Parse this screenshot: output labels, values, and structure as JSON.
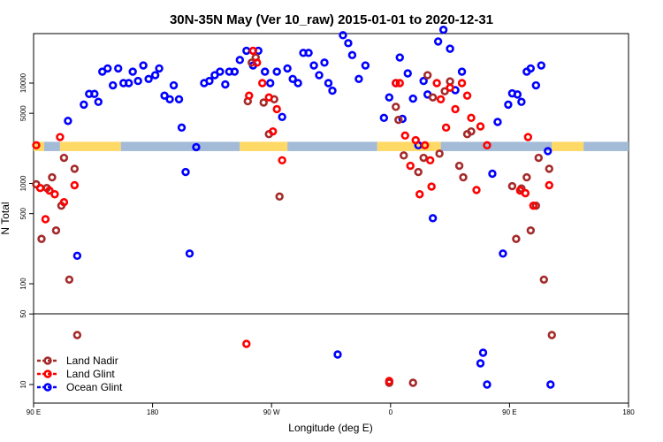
{
  "chart_data": {
    "type": "scatter",
    "title": "30N-35N May (Ver 10_raw)   2015-01-01 to 2020-12-31",
    "xlabel": "Longitude (deg E)",
    "ylabel": "N Total",
    "x_ticks": [
      {
        "value": 90,
        "label": "90 E"
      },
      {
        "value": 180,
        "label": "180"
      },
      {
        "value": 270,
        "label": "90 W"
      },
      {
        "value": 360,
        "label": "0"
      },
      {
        "value": 450,
        "label": "90 E"
      },
      {
        "value": 540,
        "label": "180"
      }
    ],
    "xlim": [
      90,
      540
    ],
    "upper_panel": {
      "yscale": "log",
      "ylim": [
        50,
        30000
      ],
      "y_ticks": [
        100,
        500,
        1000,
        5000,
        10000
      ]
    },
    "lower_panel": {
      "yscale": "linear",
      "ylim": [
        0,
        50
      ],
      "y_ticks": [
        10,
        50
      ]
    },
    "colors": {
      "land_nadir": "#a52a2a",
      "land_glint": "#ff0000",
      "ocean_glint": "#0000ff",
      "band_yellow": "#ffd966",
      "band_blue": "#a4bbd8"
    },
    "band": {
      "y_low": 2100,
      "y_high": 2600
    },
    "band_segments": [
      {
        "color": "yellow",
        "x": [
          90,
          98
        ]
      },
      {
        "color": "blue",
        "x": [
          98,
          110
        ]
      },
      {
        "color": "yellow",
        "x": [
          110,
          156
        ]
      },
      {
        "color": "blue",
        "x": [
          156,
          246
        ]
      },
      {
        "color": "yellow",
        "x": [
          246,
          282
        ]
      },
      {
        "color": "blue",
        "x": [
          282,
          350
        ]
      },
      {
        "color": "yellow",
        "x": [
          350,
          398
        ]
      },
      {
        "color": "blue",
        "x": [
          398,
          482
        ]
      },
      {
        "color": "yellow",
        "x": [
          482,
          506
        ]
      },
      {
        "color": "blue",
        "x": [
          506,
          540
        ]
      }
    ],
    "legend": {
      "position": "bottom-left",
      "entries": [
        {
          "label": "Land Nadir",
          "series": "land_nadir"
        },
        {
          "label": "Land Glint",
          "series": "land_glint"
        },
        {
          "label": "Ocean Glint",
          "series": "ocean_glint"
        }
      ]
    },
    "series": [
      {
        "name": "land_nadir",
        "points": [
          [
            92,
            980
          ],
          [
            96,
            280
          ],
          [
            100,
            900
          ],
          [
            104,
            1150
          ],
          [
            107,
            340
          ],
          [
            111,
            600
          ],
          [
            113,
            1800
          ],
          [
            117,
            110
          ],
          [
            121,
            1400
          ],
          [
            123,
            38
          ],
          [
            252,
            6600
          ],
          [
            255,
            16000
          ],
          [
            258,
            18000
          ],
          [
            264,
            6400
          ],
          [
            268,
            3100
          ],
          [
            272,
            6900
          ],
          [
            276,
            740
          ],
          [
            359,
            11
          ],
          [
            364,
            5800
          ],
          [
            366,
            4300
          ],
          [
            370,
            1900
          ],
          [
            377,
            11
          ],
          [
            381,
            1300
          ],
          [
            385,
            1800
          ],
          [
            388,
            12000
          ],
          [
            392,
            7200
          ],
          [
            397,
            1980
          ],
          [
            401,
            8300
          ],
          [
            405,
            10400
          ],
          [
            412,
            1500
          ],
          [
            415,
            1150
          ],
          [
            418,
            3100
          ],
          [
            421,
            3300
          ],
          [
            452,
            940
          ],
          [
            455,
            280
          ],
          [
            459,
            890
          ],
          [
            463,
            1150
          ],
          [
            466,
            340
          ],
          [
            470,
            600
          ],
          [
            472,
            1800
          ],
          [
            476,
            110
          ],
          [
            480,
            1400
          ],
          [
            482,
            38
          ]
        ]
      },
      {
        "name": "land_glint",
        "points": [
          [
            92,
            2400
          ],
          [
            95,
            900
          ],
          [
            99,
            440
          ],
          [
            102,
            850
          ],
          [
            106,
            780
          ],
          [
            110,
            2900
          ],
          [
            113,
            650
          ],
          [
            121,
            960
          ],
          [
            251,
            33
          ],
          [
            253,
            7500
          ],
          [
            256,
            21000
          ],
          [
            259,
            16000
          ],
          [
            263,
            10000
          ],
          [
            268,
            7200
          ],
          [
            271,
            3300
          ],
          [
            274,
            5500
          ],
          [
            278,
            1700
          ],
          [
            359,
            12
          ],
          [
            364,
            10000
          ],
          [
            367,
            10000
          ],
          [
            371,
            3000
          ],
          [
            375,
            1500
          ],
          [
            379,
            2700
          ],
          [
            382,
            780
          ],
          [
            386,
            2400
          ],
          [
            390,
            1700
          ],
          [
            391,
            930
          ],
          [
            395,
            10000
          ],
          [
            398,
            6900
          ],
          [
            402,
            3600
          ],
          [
            405,
            9000
          ],
          [
            409,
            5500
          ],
          [
            414,
            10000
          ],
          [
            418,
            7500
          ],
          [
            421,
            4500
          ],
          [
            425,
            860
          ],
          [
            428,
            3700
          ],
          [
            433,
            2400
          ],
          [
            458,
            850
          ],
          [
            462,
            800
          ],
          [
            464,
            2900
          ],
          [
            468,
            600
          ],
          [
            480,
            960
          ]
        ]
      },
      {
        "name": "ocean_glint",
        "points": [
          [
            116,
            4200
          ],
          [
            123,
            190
          ],
          [
            128,
            6100
          ],
          [
            132,
            7800
          ],
          [
            136,
            7800
          ],
          [
            139,
            6500
          ],
          [
            142,
            13000
          ],
          [
            146,
            14000
          ],
          [
            150,
            9500
          ],
          [
            154,
            14000
          ],
          [
            158,
            10000
          ],
          [
            162,
            10000
          ],
          [
            165,
            13000
          ],
          [
            169,
            10500
          ],
          [
            173,
            15000
          ],
          [
            177,
            11000
          ],
          [
            182,
            12000
          ],
          [
            185,
            14000
          ],
          [
            189,
            7500
          ],
          [
            193,
            6900
          ],
          [
            196,
            9500
          ],
          [
            200,
            6900
          ],
          [
            202,
            3600
          ],
          [
            205,
            1300
          ],
          [
            208,
            200
          ],
          [
            213,
            2300
          ],
          [
            219,
            10000
          ],
          [
            223,
            10500
          ],
          [
            227,
            12000
          ],
          [
            231,
            13000
          ],
          [
            235,
            9700
          ],
          [
            238,
            13000
          ],
          [
            242,
            13000
          ],
          [
            246,
            17000
          ],
          [
            251,
            21000
          ],
          [
            256,
            15000
          ],
          [
            260,
            21000
          ],
          [
            265,
            13000
          ],
          [
            269,
            10000
          ],
          [
            274,
            13000
          ],
          [
            278,
            4600
          ],
          [
            282,
            14000
          ],
          [
            286,
            11000
          ],
          [
            290,
            10000
          ],
          [
            294,
            20000
          ],
          [
            298,
            20000
          ],
          [
            302,
            15000
          ],
          [
            306,
            12000
          ],
          [
            310,
            16000
          ],
          [
            313,
            10000
          ],
          [
            316,
            8400
          ],
          [
            320,
            27
          ],
          [
            324,
            30000
          ],
          [
            328,
            25000
          ],
          [
            331,
            19000
          ],
          [
            336,
            11000
          ],
          [
            341,
            15000
          ],
          [
            355,
            4500
          ],
          [
            359,
            7200
          ],
          [
            364,
            10000
          ],
          [
            367,
            18000
          ],
          [
            369,
            4400
          ],
          [
            373,
            12500
          ],
          [
            377,
            7000
          ],
          [
            381,
            2400
          ],
          [
            385,
            10500
          ],
          [
            388,
            7700
          ],
          [
            392,
            450
          ],
          [
            396,
            26000
          ],
          [
            400,
            34000
          ],
          [
            405,
            22000
          ],
          [
            409,
            8500
          ],
          [
            414,
            13000
          ],
          [
            428,
            22
          ],
          [
            430,
            28
          ],
          [
            433,
            10
          ],
          [
            437,
            1250
          ],
          [
            441,
            4100
          ],
          [
            445,
            200
          ],
          [
            449,
            6100
          ],
          [
            452,
            7900
          ],
          [
            456,
            7700
          ],
          [
            459,
            6500
          ],
          [
            463,
            13000
          ],
          [
            466,
            14000
          ],
          [
            470,
            9500
          ],
          [
            474,
            15000
          ],
          [
            479,
            2100
          ],
          [
            481,
            10
          ]
        ]
      }
    ]
  }
}
